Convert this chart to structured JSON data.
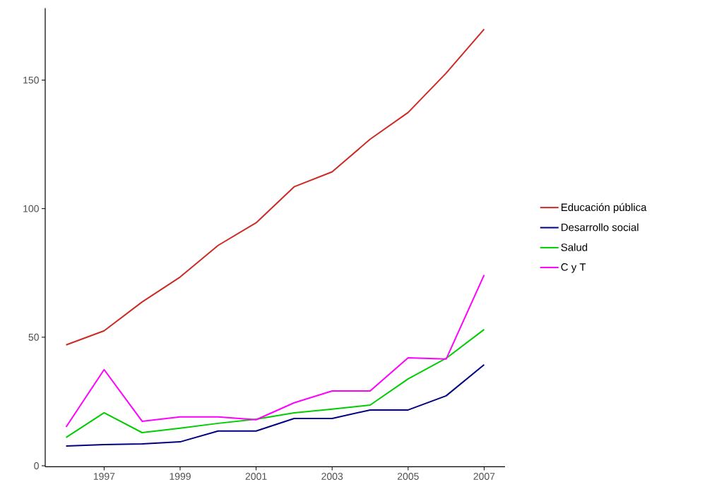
{
  "chart_data": {
    "type": "line",
    "x": [
      1996,
      1997,
      1998,
      1999,
      2000,
      2001,
      2002,
      2003,
      2004,
      2005,
      2006,
      2007
    ],
    "series": [
      {
        "name": "Educación pública",
        "color": "#cc2a24",
        "values": [
          47,
          52.5,
          63.7,
          73.4,
          85.7,
          94.5,
          108.5,
          114.3,
          127,
          137.4,
          152.7,
          169.8
        ]
      },
      {
        "name": "Desarrollo social",
        "color": "#000080",
        "values": [
          7.7,
          8.2,
          8.5,
          9.3,
          13.5,
          13.5,
          18.4,
          18.4,
          21.7,
          21.7,
          27.2,
          39.3
        ]
      },
      {
        "name": "Salud",
        "color": "#00cd00",
        "values": [
          11,
          20.6,
          12.9,
          14.6,
          16.5,
          18.1,
          20.6,
          22,
          23.6,
          33.8,
          41.8,
          53
        ]
      },
      {
        "name": "C y T",
        "color": "#ff00ff",
        "values": [
          15.1,
          37.4,
          17.3,
          19,
          19,
          17.9,
          24.5,
          29.1,
          29.1,
          42,
          41.5,
          74.2
        ]
      }
    ],
    "xlim": [
      1995.45,
      2007.55
    ],
    "ylim": [
      -0.4,
      178
    ],
    "xticks": [
      1997,
      1999,
      2001,
      2003,
      2005,
      2007
    ],
    "yticks": [
      0,
      50,
      100,
      150
    ],
    "grid": false,
    "legend": "right",
    "marker": "none",
    "line_style": "solid"
  }
}
